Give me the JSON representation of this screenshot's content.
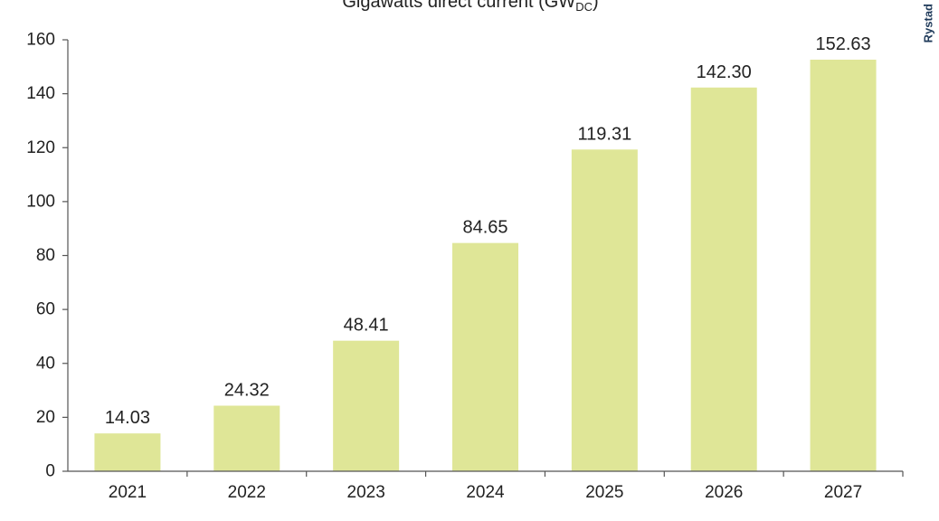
{
  "chart_data": {
    "type": "bar",
    "subtitle_main": "Gigawatts direct current (GW",
    "subtitle_sub": "DC",
    "subtitle_end": ")",
    "categories": [
      "2021",
      "2022",
      "2023",
      "2024",
      "2025",
      "2026",
      "2027"
    ],
    "values": [
      14.03,
      24.32,
      48.41,
      84.65,
      119.31,
      142.3,
      152.63
    ],
    "value_labels": [
      "14.03",
      "24.32",
      "48.41",
      "84.65",
      "119.31",
      "142.30",
      "152.63"
    ],
    "y_ticks": [
      0,
      20,
      40,
      60,
      80,
      100,
      120,
      140,
      160
    ],
    "ylim": [
      0,
      160
    ],
    "grid": false,
    "bar_color": "#dfe697",
    "axis_color": "#555555"
  },
  "watermark": "Rystad"
}
